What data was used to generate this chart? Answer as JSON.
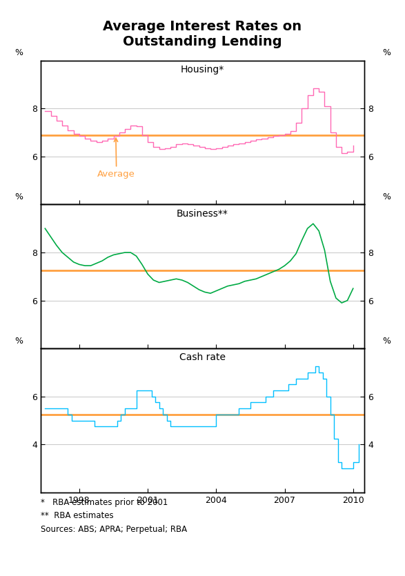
{
  "title": "Average Interest Rates on\nOutstanding Lending",
  "title_fontsize": 14,
  "panels": [
    {
      "label": "Housing*",
      "ylim": [
        4,
        10
      ],
      "yticks": [
        4,
        6,
        8,
        10
      ],
      "average": 6.9,
      "average_color": "#FFA040",
      "line_color": "#FF69B4",
      "show_average_label": true,
      "draw_style": "steps-post"
    },
    {
      "label": "Business**",
      "ylim": [
        4,
        10
      ],
      "yticks": [
        4,
        6,
        8,
        10
      ],
      "average": 7.25,
      "average_color": "#FFA040",
      "line_color": "#00AA44",
      "show_average_label": false,
      "draw_style": "default"
    },
    {
      "label": "Cash rate",
      "ylim": [
        2,
        8
      ],
      "yticks": [
        2,
        4,
        6,
        8
      ],
      "average": 5.25,
      "average_color": "#FFA040",
      "line_color": "#00BFFF",
      "show_average_label": false,
      "draw_style": "steps-post"
    }
  ],
  "xlim": [
    1996.3,
    2010.5
  ],
  "xticks": [
    1998,
    2001,
    2004,
    2007,
    2010
  ],
  "xticklabels": [
    "1998",
    "2001",
    "2004",
    "2007",
    "2010"
  ],
  "footnotes": [
    "*   RBA estimates prior to 2001",
    "**  RBA estimates",
    "Sources: ABS; APRA; Perpetual; RBA"
  ],
  "background_color": "#ffffff",
  "grid_color": "#cccccc",
  "housing_data": {
    "x": [
      1996.5,
      1996.75,
      1997.0,
      1997.25,
      1997.5,
      1997.75,
      1998.0,
      1998.25,
      1998.5,
      1998.75,
      1999.0,
      1999.25,
      1999.5,
      1999.75,
      2000.0,
      2000.25,
      2000.5,
      2000.75,
      2001.0,
      2001.25,
      2001.5,
      2001.75,
      2002.0,
      2002.25,
      2002.5,
      2002.75,
      2003.0,
      2003.25,
      2003.5,
      2003.75,
      2004.0,
      2004.25,
      2004.5,
      2004.75,
      2005.0,
      2005.25,
      2005.5,
      2005.75,
      2006.0,
      2006.25,
      2006.5,
      2006.75,
      2007.0,
      2007.25,
      2007.5,
      2007.75,
      2008.0,
      2008.25,
      2008.5,
      2008.75,
      2009.0,
      2009.25,
      2009.5,
      2009.75,
      2010.0
    ],
    "y": [
      7.9,
      7.7,
      7.5,
      7.3,
      7.1,
      6.95,
      6.85,
      6.75,
      6.65,
      6.6,
      6.65,
      6.75,
      6.85,
      7.0,
      7.15,
      7.3,
      7.25,
      6.9,
      6.6,
      6.4,
      6.3,
      6.35,
      6.4,
      6.5,
      6.55,
      6.5,
      6.45,
      6.4,
      6.35,
      6.3,
      6.35,
      6.4,
      6.45,
      6.5,
      6.55,
      6.6,
      6.65,
      6.7,
      6.75,
      6.8,
      6.85,
      6.9,
      6.95,
      7.05,
      7.4,
      8.0,
      8.55,
      8.85,
      8.7,
      8.1,
      7.0,
      6.4,
      6.15,
      6.2,
      6.45
    ]
  },
  "business_data": {
    "x": [
      1996.5,
      1996.75,
      1997.0,
      1997.25,
      1997.5,
      1997.75,
      1998.0,
      1998.25,
      1998.5,
      1998.75,
      1999.0,
      1999.25,
      1999.5,
      1999.75,
      2000.0,
      2000.25,
      2000.5,
      2000.75,
      2001.0,
      2001.25,
      2001.5,
      2001.75,
      2002.0,
      2002.25,
      2002.5,
      2002.75,
      2003.0,
      2003.25,
      2003.5,
      2003.75,
      2004.0,
      2004.25,
      2004.5,
      2004.75,
      2005.0,
      2005.25,
      2005.5,
      2005.75,
      2006.0,
      2006.25,
      2006.5,
      2006.75,
      2007.0,
      2007.25,
      2007.5,
      2007.75,
      2008.0,
      2008.25,
      2008.5,
      2008.75,
      2009.0,
      2009.25,
      2009.5,
      2009.75,
      2010.0
    ],
    "y": [
      9.0,
      8.65,
      8.3,
      8.0,
      7.8,
      7.6,
      7.5,
      7.45,
      7.45,
      7.55,
      7.65,
      7.8,
      7.9,
      7.95,
      8.0,
      8.0,
      7.85,
      7.5,
      7.1,
      6.85,
      6.75,
      6.8,
      6.85,
      6.9,
      6.85,
      6.75,
      6.6,
      6.45,
      6.35,
      6.3,
      6.4,
      6.5,
      6.6,
      6.65,
      6.7,
      6.8,
      6.85,
      6.9,
      7.0,
      7.1,
      7.2,
      7.3,
      7.45,
      7.65,
      7.95,
      8.5,
      9.0,
      9.2,
      8.9,
      8.1,
      6.8,
      6.1,
      5.9,
      6.0,
      6.5
    ]
  },
  "cash_data": {
    "x": [
      1996.5,
      1996.75,
      1997.0,
      1997.17,
      1997.5,
      1997.67,
      1997.83,
      1998.0,
      1998.5,
      1998.67,
      1998.83,
      1999.0,
      1999.5,
      1999.67,
      1999.83,
      2000.0,
      2000.17,
      2000.5,
      2000.67,
      2001.0,
      2001.17,
      2001.33,
      2001.5,
      2001.67,
      2001.83,
      2002.0,
      2002.5,
      2002.83,
      2003.0,
      2003.5,
      2003.83,
      2004.0,
      2004.5,
      2004.83,
      2005.0,
      2005.17,
      2005.5,
      2005.83,
      2006.0,
      2006.17,
      2006.33,
      2006.5,
      2006.83,
      2007.0,
      2007.17,
      2007.33,
      2007.5,
      2007.67,
      2007.83,
      2008.0,
      2008.17,
      2008.33,
      2008.5,
      2008.67,
      2008.83,
      2009.0,
      2009.17,
      2009.33,
      2009.5,
      2009.83,
      2010.0,
      2010.25
    ],
    "y": [
      5.5,
      5.5,
      5.5,
      5.5,
      5.25,
      5.0,
      5.0,
      5.0,
      5.0,
      4.75,
      4.75,
      4.75,
      4.75,
      5.0,
      5.25,
      5.5,
      5.5,
      6.25,
      6.25,
      6.25,
      6.0,
      5.75,
      5.5,
      5.25,
      5.0,
      4.75,
      4.75,
      4.75,
      4.75,
      4.75,
      4.75,
      5.25,
      5.25,
      5.25,
      5.5,
      5.5,
      5.75,
      5.75,
      5.75,
      6.0,
      6.0,
      6.25,
      6.25,
      6.25,
      6.5,
      6.5,
      6.75,
      6.75,
      6.75,
      7.0,
      7.0,
      7.25,
      7.0,
      6.75,
      6.0,
      5.25,
      4.25,
      3.25,
      3.0,
      3.0,
      3.25,
      4.0
    ]
  }
}
